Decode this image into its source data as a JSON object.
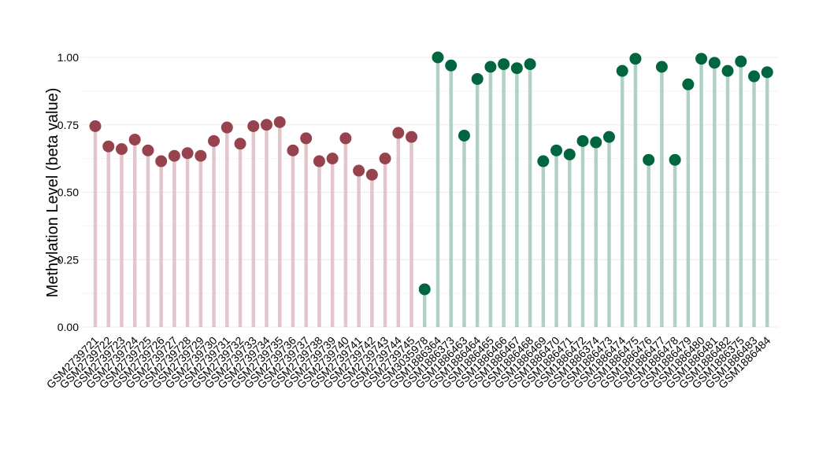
{
  "chart_data": {
    "type": "lollipop",
    "title": "",
    "xlabel": "",
    "ylabel": "Methylation Level (beta value)",
    "ylim": [
      0,
      1
    ],
    "yticks": [
      "0.00",
      "0.25",
      "0.50",
      "0.75",
      "1.00"
    ],
    "grid": true,
    "legend": "none",
    "colors": {
      "group_a_point": "#96434e",
      "group_a_stem": "#e3c6cb",
      "group_b_point": "#00663f",
      "group_b_stem": "#b2d1c5",
      "grid": "#ebebeb"
    },
    "points": [
      {
        "sample": "GSM2739721",
        "value": 0.745,
        "group": "a"
      },
      {
        "sample": "GSM2739722",
        "value": 0.67,
        "group": "a"
      },
      {
        "sample": "GSM2739723",
        "value": 0.66,
        "group": "a"
      },
      {
        "sample": "GSM2739724",
        "value": 0.695,
        "group": "a"
      },
      {
        "sample": "GSM2739725",
        "value": 0.655,
        "group": "a"
      },
      {
        "sample": "GSM2739726",
        "value": 0.615,
        "group": "a"
      },
      {
        "sample": "GSM2739727",
        "value": 0.635,
        "group": "a"
      },
      {
        "sample": "GSM2739728",
        "value": 0.645,
        "group": "a"
      },
      {
        "sample": "GSM2739729",
        "value": 0.635,
        "group": "a"
      },
      {
        "sample": "GSM2739730",
        "value": 0.69,
        "group": "a"
      },
      {
        "sample": "GSM2739731",
        "value": 0.74,
        "group": "a"
      },
      {
        "sample": "GSM2739732",
        "value": 0.68,
        "group": "a"
      },
      {
        "sample": "GSM2739733",
        "value": 0.745,
        "group": "a"
      },
      {
        "sample": "GSM2739734",
        "value": 0.75,
        "group": "a"
      },
      {
        "sample": "GSM2739735",
        "value": 0.76,
        "group": "a"
      },
      {
        "sample": "GSM2739736",
        "value": 0.655,
        "group": "a"
      },
      {
        "sample": "GSM2739737",
        "value": 0.7,
        "group": "a"
      },
      {
        "sample": "GSM2739738",
        "value": 0.615,
        "group": "a"
      },
      {
        "sample": "GSM2739739",
        "value": 0.625,
        "group": "a"
      },
      {
        "sample": "GSM2739740",
        "value": 0.7,
        "group": "a"
      },
      {
        "sample": "GSM2739741",
        "value": 0.58,
        "group": "a"
      },
      {
        "sample": "GSM2739742",
        "value": 0.565,
        "group": "a"
      },
      {
        "sample": "GSM2739743",
        "value": 0.625,
        "group": "a"
      },
      {
        "sample": "GSM2739744",
        "value": 0.72,
        "group": "a"
      },
      {
        "sample": "GSM2739745",
        "value": 0.705,
        "group": "a"
      },
      {
        "sample": "GSM3035978",
        "value": 0.14,
        "group": "b"
      },
      {
        "sample": "GSM1886364",
        "value": 1.0,
        "group": "b"
      },
      {
        "sample": "GSM1886373",
        "value": 0.97,
        "group": "b"
      },
      {
        "sample": "GSM1886463",
        "value": 0.71,
        "group": "b"
      },
      {
        "sample": "GSM1886464",
        "value": 0.92,
        "group": "b"
      },
      {
        "sample": "GSM1886465",
        "value": 0.965,
        "group": "b"
      },
      {
        "sample": "GSM1886466",
        "value": 0.975,
        "group": "b"
      },
      {
        "sample": "GSM1886467",
        "value": 0.96,
        "group": "b"
      },
      {
        "sample": "GSM1886468",
        "value": 0.975,
        "group": "b"
      },
      {
        "sample": "GSM1886469",
        "value": 0.615,
        "group": "b"
      },
      {
        "sample": "GSM1886470",
        "value": 0.655,
        "group": "b"
      },
      {
        "sample": "GSM1886471",
        "value": 0.64,
        "group": "b"
      },
      {
        "sample": "GSM1886472",
        "value": 0.69,
        "group": "b"
      },
      {
        "sample": "GSM1886374",
        "value": 0.685,
        "group": "b"
      },
      {
        "sample": "GSM1886473",
        "value": 0.705,
        "group": "b"
      },
      {
        "sample": "GSM1886474",
        "value": 0.95,
        "group": "b"
      },
      {
        "sample": "GSM1886475",
        "value": 0.995,
        "group": "b"
      },
      {
        "sample": "GSM1886476",
        "value": 0.62,
        "group": "b"
      },
      {
        "sample": "GSM1886477",
        "value": 0.965,
        "group": "b"
      },
      {
        "sample": "GSM1886478",
        "value": 0.62,
        "group": "b"
      },
      {
        "sample": "GSM1886479",
        "value": 0.9,
        "group": "b"
      },
      {
        "sample": "GSM1886480",
        "value": 0.995,
        "group": "b"
      },
      {
        "sample": "GSM1886481",
        "value": 0.98,
        "group": "b"
      },
      {
        "sample": "GSM1886482",
        "value": 0.95,
        "group": "b"
      },
      {
        "sample": "GSM1886375",
        "value": 0.985,
        "group": "b"
      },
      {
        "sample": "GSM1886483",
        "value": 0.93,
        "group": "b"
      },
      {
        "sample": "GSM1886484",
        "value": 0.945,
        "group": "b"
      }
    ]
  }
}
